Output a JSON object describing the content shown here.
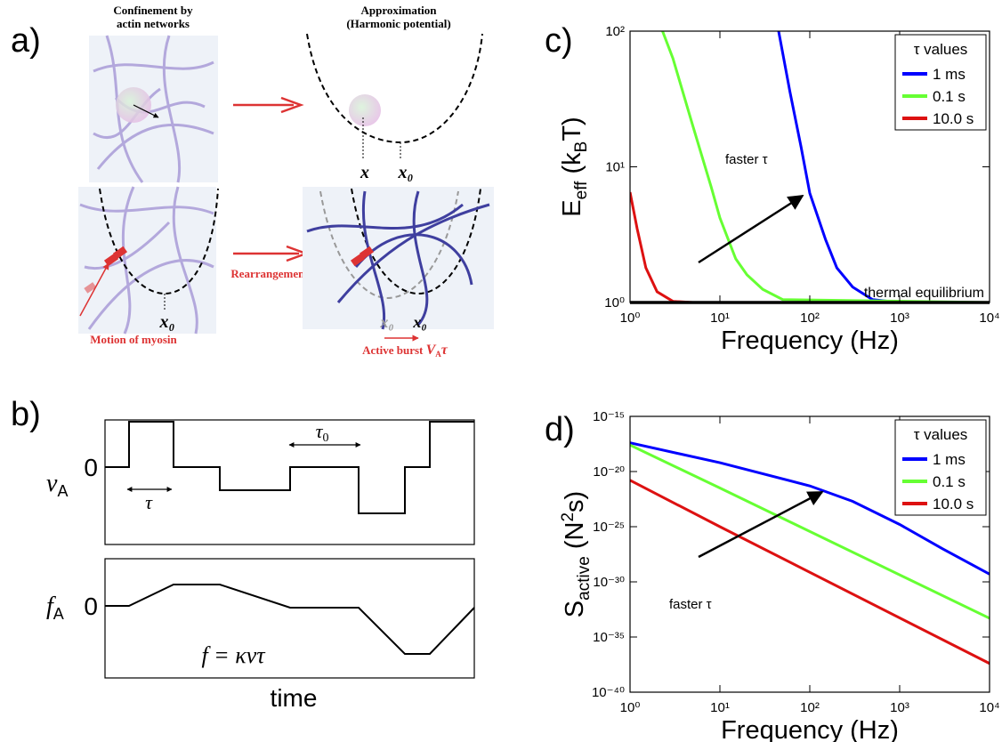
{
  "panel_labels": [
    "a)",
    "b)",
    "c)",
    "d)"
  ],
  "panel_a": {
    "title_left": [
      "Confinement by",
      "actin networks"
    ],
    "title_right": [
      "Approximation",
      "(Harmonic potential)"
    ],
    "x_label": "x",
    "x0_labels": [
      "x₀",
      "x₀",
      "x₀",
      "x₀"
    ],
    "rearrangement": "Rearrangement",
    "myosin": "Motion of myosin",
    "burst": [
      {
        "text": "Active burst "
      },
      {
        "text": "V"
      },
      {
        "text": "A",
        "sub": true
      },
      {
        "text": "τ"
      }
    ]
  },
  "panel_b": {
    "va": [
      {
        "text": "v"
      },
      {
        "text": "A",
        "sub": true
      }
    ],
    "fa": [
      {
        "text": "f"
      },
      {
        "text": "A",
        "sub": true
      }
    ],
    "zeros": [
      "0",
      "0"
    ],
    "tau": "τ",
    "tau0": [
      {
        "text": "τ"
      },
      {
        "text": "0",
        "sub": true
      }
    ],
    "formula": "f = κvτ",
    "time": "time"
  },
  "chart_data": [
    {
      "type": "line",
      "log_x": true,
      "log_y": true,
      "xlabel": "Frequency (Hz)",
      "ylabel": [
        {
          "text": "E"
        },
        {
          "text": "eff",
          "sub": true
        },
        {
          "text": " (k"
        },
        {
          "text": "B",
          "sub": true
        },
        {
          "text": "T)"
        }
      ],
      "xlim": [
        1,
        10000
      ],
      "ylim": [
        1,
        100
      ],
      "xticks": [
        {
          "value": 1,
          "label": "10⁰"
        },
        {
          "value": 10,
          "label": "10¹"
        },
        {
          "value": 100,
          "label": "10²"
        },
        {
          "value": 1000,
          "label": "10³"
        },
        {
          "value": 10000,
          "label": "10⁴"
        }
      ],
      "yticks": [
        {
          "value": 1,
          "label": "10⁰"
        },
        {
          "value": 10,
          "label": "10¹"
        },
        {
          "value": 100,
          "label": "10²"
        }
      ],
      "legend": {
        "title": "τ values",
        "loc": "upper right"
      },
      "series": [
        {
          "name": "1 ms",
          "color": "#0000ff",
          "x": [
            45,
            60,
            80,
            100,
            150,
            200,
            300,
            500,
            1000,
            10000
          ],
          "values": [
            100,
            36,
            14,
            6.4,
            2.9,
            1.8,
            1.3,
            1.05,
            1,
            1
          ]
        },
        {
          "name": "0.1 s",
          "color": "#66ff33",
          "x": [
            2.3,
            3,
            5,
            8,
            10,
            15,
            20,
            30,
            50,
            10000
          ],
          "values": [
            100,
            63,
            20,
            7.1,
            4.2,
            2.1,
            1.6,
            1.25,
            1.05,
            1
          ]
        },
        {
          "name": "10.0 s",
          "color": "#dd1111",
          "x": [
            1,
            1.2,
            1.5,
            2,
            3,
            5,
            10000
          ],
          "values": [
            6.5,
            3.5,
            1.8,
            1.2,
            1.02,
            1,
            1
          ]
        }
      ],
      "reference_line": {
        "value": 1,
        "label": "thermal equilibrium",
        "color": "#000000"
      },
      "annotation": "faster τ"
    },
    {
      "type": "line",
      "log_x": true,
      "log_y": true,
      "xlabel": "Frequency (Hz)",
      "ylabel": [
        {
          "text": "S"
        },
        {
          "text": "active",
          "sub": true
        },
        {
          "text": " (N"
        },
        {
          "text": "2",
          "sup": true
        },
        {
          "text": "s)"
        }
      ],
      "xlim": [
        1,
        10000
      ],
      "ylim": [
        1e-40,
        1e-15
      ],
      "xticks": [
        {
          "value": 1,
          "label": "10⁰"
        },
        {
          "value": 10,
          "label": "10¹"
        },
        {
          "value": 100,
          "label": "10²"
        },
        {
          "value": 1000,
          "label": "10³"
        },
        {
          "value": 10000,
          "label": "10⁴"
        }
      ],
      "yticks": [
        {
          "value": 1e-40,
          "label": "10⁻⁴⁰"
        },
        {
          "value": 1e-35,
          "label": "10⁻³⁵"
        },
        {
          "value": 1e-30,
          "label": "10⁻³⁰"
        },
        {
          "value": 1e-25,
          "label": "10⁻²⁵"
        },
        {
          "value": 1e-20,
          "label": "10⁻²⁰"
        },
        {
          "value": 1e-15,
          "label": "10⁻¹⁵"
        }
      ],
      "legend": {
        "title": "τ values",
        "loc": "upper right"
      },
      "series": [
        {
          "name": "1 ms",
          "color": "#0000ff",
          "x": [
            1,
            10,
            100,
            300,
            1000,
            3000,
            10000
          ],
          "values": [
            4e-18,
            6.3e-20,
            5e-22,
            2e-23,
            1.6e-25,
            1e-27,
            5e-30
          ]
        },
        {
          "name": "0.1 s",
          "color": "#66ff33",
          "x": [
            1,
            10,
            10000
          ],
          "values": [
            2.5e-18,
            3.2e-22,
            5e-34
          ]
        },
        {
          "name": "10.0 s",
          "color": "#dd1111",
          "x": [
            1,
            10,
            10000
          ],
          "values": [
            1.6e-21,
            1e-25,
            4e-38
          ]
        }
      ],
      "annotation": "faster τ"
    }
  ]
}
